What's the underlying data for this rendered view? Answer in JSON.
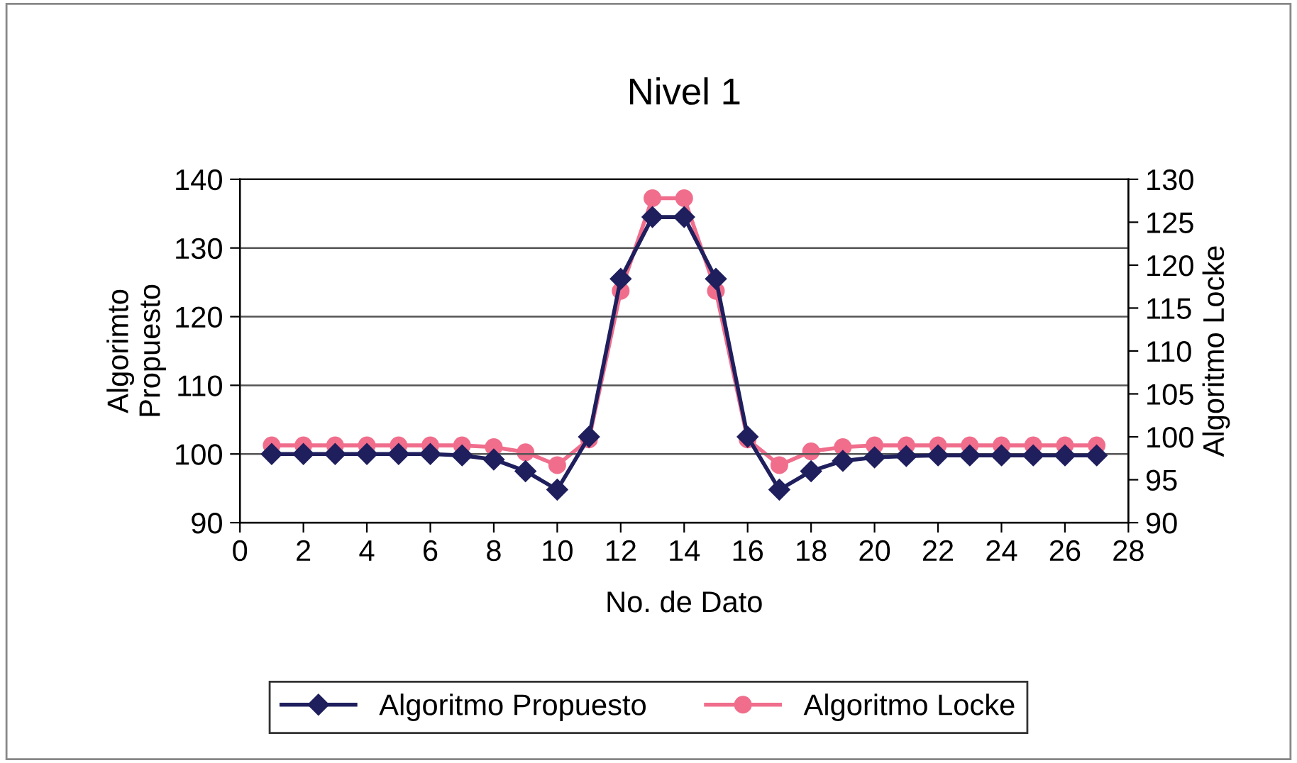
{
  "chart_data": {
    "type": "line",
    "title": "Nivel 1",
    "xlabel": "No. de Dato",
    "ylabel": "Algorimto\nPropuesto",
    "y2label": "Algoritmo Locke",
    "x": [
      1,
      2,
      3,
      4,
      5,
      6,
      7,
      8,
      9,
      10,
      11,
      12,
      13,
      14,
      15,
      16,
      17,
      18,
      19,
      20,
      21,
      22,
      23,
      24,
      25,
      26,
      27
    ],
    "series": [
      {
        "name": "Algoritmo Propuesto",
        "color": "#1f1f5e",
        "marker": "diamond",
        "values": [
          100,
          100,
          100,
          100,
          100,
          100,
          99.8,
          99.2,
          97.5,
          94.8,
          102.5,
          125.5,
          134.5,
          134.5,
          125.5,
          102.5,
          94.8,
          97.5,
          99,
          99.5,
          99.7,
          99.8,
          99.8,
          99.8,
          99.8,
          99.8,
          99.8
        ]
      },
      {
        "name": "Algoritmo Locke",
        "color": "#f06e8c",
        "marker": "circle",
        "axis": "y2",
        "values": [
          99,
          99,
          99,
          99,
          99,
          99,
          99,
          98.8,
          98.2,
          96.7,
          99.7,
          117,
          127.8,
          127.8,
          117,
          99.7,
          96.7,
          98.3,
          98.8,
          99,
          99,
          99,
          99,
          99,
          99,
          99,
          99
        ]
      }
    ],
    "xlim": [
      0,
      28
    ],
    "xticks": [
      0,
      2,
      4,
      6,
      8,
      10,
      12,
      14,
      16,
      18,
      20,
      22,
      24,
      26,
      28
    ],
    "ylim": [
      90,
      140
    ],
    "yticks": [
      90,
      100,
      110,
      120,
      130,
      140
    ],
    "y2lim": [
      90,
      130
    ],
    "y2ticks": [
      90,
      95,
      100,
      105,
      110,
      115,
      120,
      125,
      130
    ],
    "grid": "y",
    "legend": "bottom",
    "line_style": "solid"
  }
}
